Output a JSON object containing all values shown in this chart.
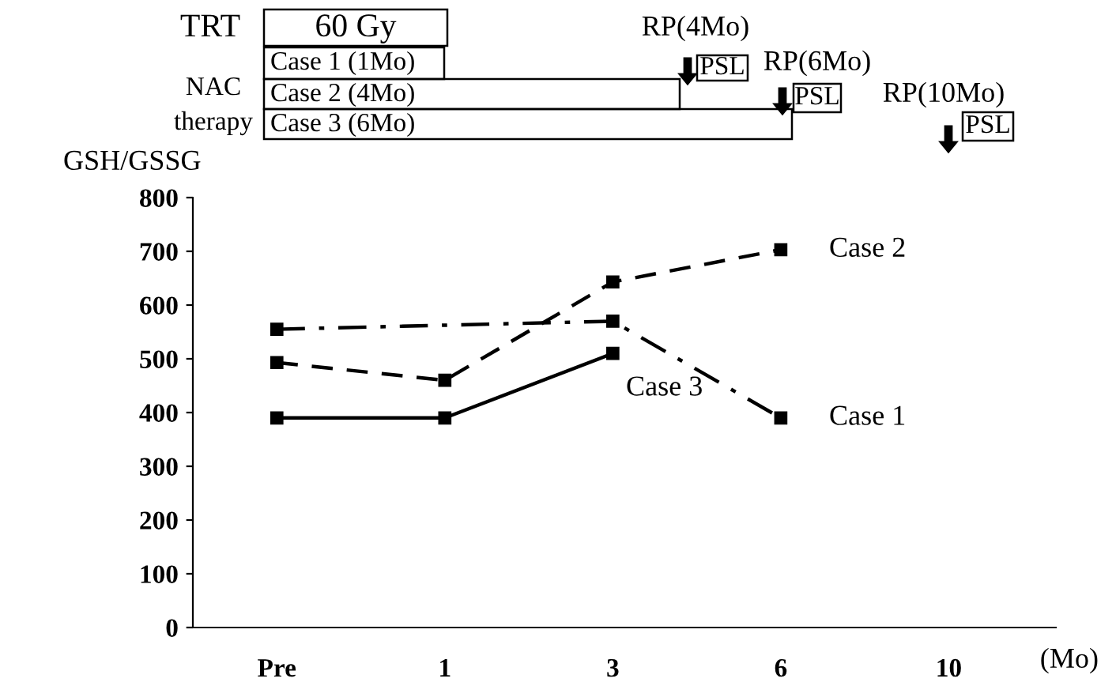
{
  "chart_data": {
    "type": "line",
    "ylabel": "GSH/GSSG",
    "xlabel": "(Mo)",
    "categories": [
      "Pre",
      "1",
      "3",
      "6",
      "10"
    ],
    "ylim": [
      0,
      800
    ],
    "yticks": [
      0,
      100,
      200,
      300,
      400,
      500,
      600,
      700,
      800
    ],
    "marker": "square",
    "grid": false,
    "legend": false,
    "series": [
      {
        "name": "Case 1",
        "color": "#000000",
        "line_style": "dashdot",
        "values": [
          555,
          null,
          570,
          390,
          null
        ]
      },
      {
        "name": "Case 2",
        "color": "#000000",
        "line_style": "dashed",
        "values": [
          493,
          460,
          643,
          703,
          null
        ]
      },
      {
        "name": "Case 3",
        "color": "#000000",
        "line_style": "solid",
        "values": [
          390,
          390,
          510,
          null,
          null
        ]
      }
    ],
    "annotations": [
      "TRT",
      "60 Gy",
      "NAC",
      "therapy",
      "Case 1 (1Mo)",
      "Case 2 (4Mo)",
      "Case 3 (6Mo)",
      "RP(4Mo)",
      "PSL",
      "RP(6Mo)",
      "PSL",
      "RP(10Mo)",
      "PSL"
    ]
  }
}
